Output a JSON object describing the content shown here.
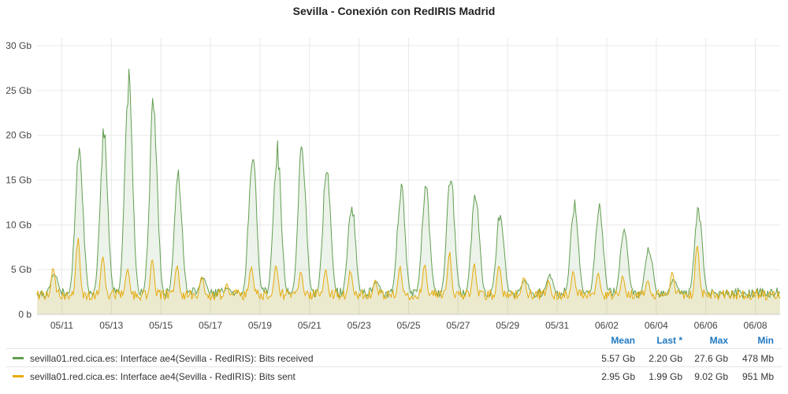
{
  "chart_data": {
    "type": "area",
    "title": "Sevilla - Conexión con RedIRIS Madrid",
    "ylabel": "",
    "xlabel": "",
    "ylim": [
      0,
      30
    ],
    "y_unit": "Gb",
    "y_ticks": [
      "0 b",
      "5 Gb",
      "10 Gb",
      "15 Gb",
      "20 Gb",
      "25 Gb",
      "30 Gb"
    ],
    "x_ticks": [
      "05/11",
      "05/13",
      "05/15",
      "05/17",
      "05/19",
      "05/21",
      "05/23",
      "05/25",
      "05/27",
      "05/29",
      "05/31",
      "06/02",
      "06/04",
      "06/06",
      "06/08"
    ],
    "x_range_days": [
      "05/10",
      "06/09"
    ],
    "grid": true,
    "legend_placement": "bottom",
    "series": [
      {
        "name": "sevilla01.red.cica.es: Interface ae4(Sevilla - RedIRIS): Bits received",
        "color": "#629e51",
        "daily_peaks": [
          4.8,
          20.5,
          21.5,
          27.6,
          25.0,
          16.2,
          4.3,
          3.0,
          19.2,
          19.6,
          19.9,
          17.8,
          13.0,
          3.8,
          15.0,
          15.0,
          16.6,
          14.6,
          12.0,
          4.0,
          4.5,
          13.0,
          13.0,
          10.0,
          7.8,
          4.0,
          12.5
        ],
        "daily_peak_days": [
          10.8,
          11.7,
          12.7,
          13.7,
          14.7,
          15.7,
          16.8,
          17.8,
          18.7,
          19.7,
          20.7,
          21.7,
          22.7,
          23.8,
          24.7,
          25.7,
          26.7,
          27.7,
          28.7,
          29.8,
          30.8,
          31.7,
          32.7,
          33.7,
          34.7,
          35.8,
          36.7
        ],
        "stats": {
          "mean": "5.57 Gb",
          "last": "2.20 Gb",
          "max": "27.6 Gb",
          "min": "478 Mb"
        }
      },
      {
        "name": "sevilla01.red.cica.es: Interface ae4(Sevilla - RedIRIS): Bits sent",
        "color": "#e5ac0e",
        "daily_peaks": [
          5.5,
          9.0,
          7.0,
          5.5,
          6.2,
          5.8,
          4.5,
          3.5,
          5.8,
          6.0,
          5.0,
          5.2,
          5.0,
          4.0,
          5.5,
          6.0,
          7.5,
          6.0,
          6.0,
          4.5,
          4.0,
          5.0,
          5.0,
          4.5,
          4.0,
          5.0,
          8.5
        ],
        "stats": {
          "mean": "2.95 Gb",
          "last": "1.99 Gb",
          "max": "9.02 Gb",
          "min": "951 Mb"
        }
      }
    ]
  },
  "legend": {
    "headers": {
      "mean": "Mean",
      "last": "Last *",
      "max": "Max",
      "min": "Min"
    }
  }
}
